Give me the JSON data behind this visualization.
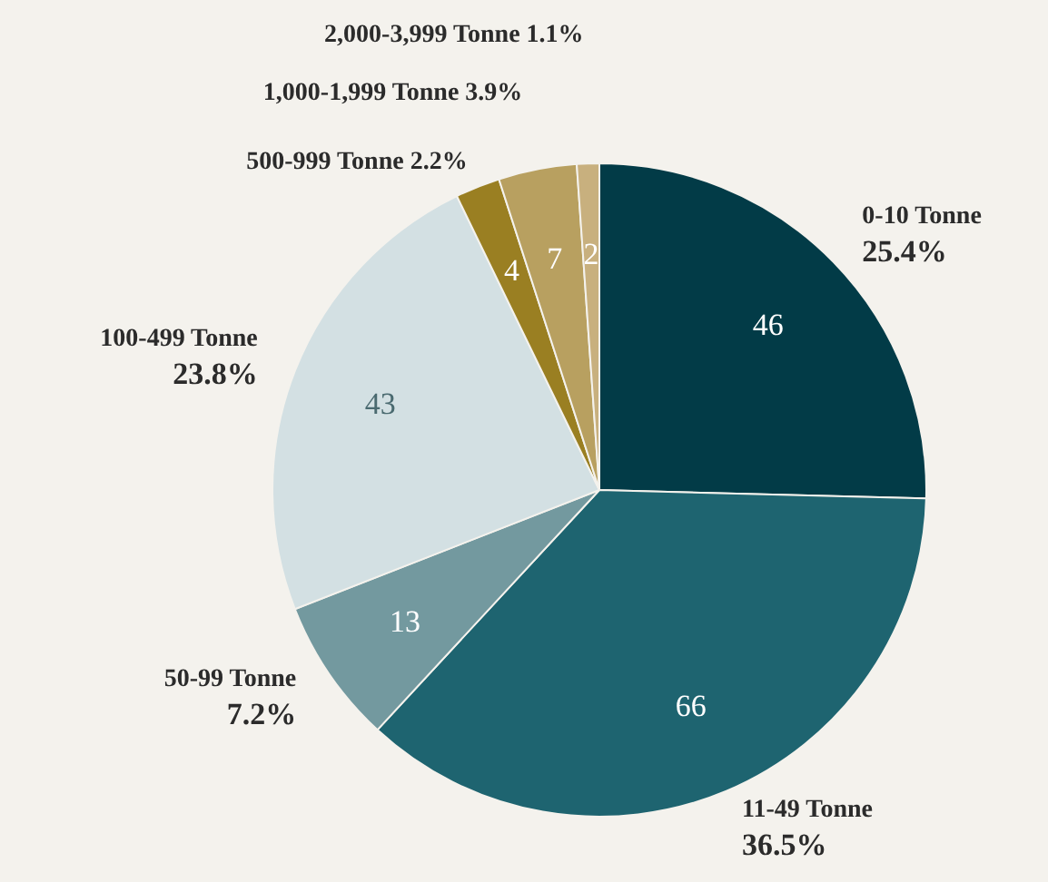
{
  "chart_data": {
    "type": "pie",
    "categories": [
      "0-10 Tonne",
      "11-49 Tonne",
      "50-99 Tonne",
      "100-499 Tonne",
      "500-999 Tonne",
      "1,000-1,999 Tonne",
      "2,000-3,999 Tonne"
    ],
    "values": [
      46,
      66,
      13,
      43,
      4,
      7,
      2
    ],
    "colors": [
      "#023b47",
      "#1e6470",
      "#73999f",
      "#d3e0e3",
      "#9a7f22",
      "#b8a060",
      "#c8b07e"
    ],
    "data_labels": true,
    "annotations": [
      {
        "text": "25.4%",
        "x": "0-10 Tonne"
      },
      {
        "text": "36.5%",
        "x": "11-49 Tonne"
      },
      {
        "text": "7.2%",
        "x": "50-99 Tonne"
      },
      {
        "text": "23.8%",
        "x": "100-499 Tonne"
      },
      {
        "text": "2.2%",
        "x": "500-999 Tonne"
      },
      {
        "text": "3.9%",
        "x": "1,000-1,999 Tonne"
      },
      {
        "text": "1.1%",
        "x": "2,000-3,999 Tonne"
      }
    ]
  }
}
